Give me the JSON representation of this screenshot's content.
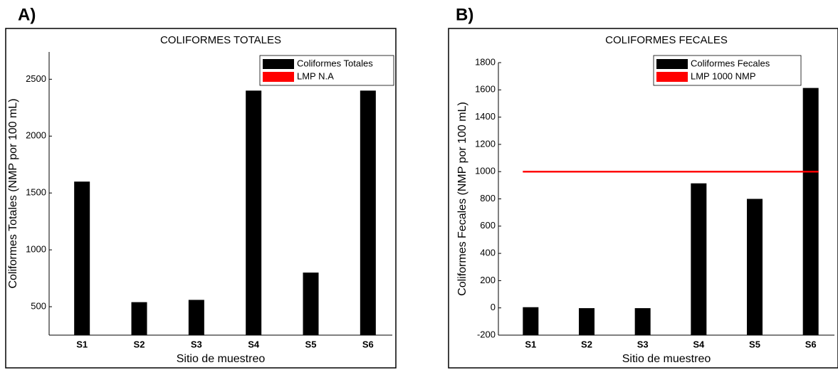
{
  "chart_data": [
    {
      "type": "bar",
      "panel_label": "A)",
      "title": "COLIFORMES TOTALES",
      "x_label": "Sitio de muestreo",
      "y_label": "Coliformes Totales (NMP por 100 mL)",
      "categories": [
        "S1",
        "S2",
        "S3",
        "S4",
        "S5",
        "S6"
      ],
      "series": [
        {
          "name": "Coliformes Totales",
          "color": "#000000",
          "values": [
            1600,
            540,
            560,
            2400,
            800,
            2400
          ]
        }
      ],
      "reference_line": {
        "name": "LMP N.A",
        "color": "#ff0000"
      },
      "ylim": [
        250,
        2740
      ],
      "yticks": [
        500,
        1000,
        1500,
        2000,
        2500
      ]
    },
    {
      "type": "bar",
      "panel_label": "B)",
      "title": "COLIFORMES FECALES",
      "x_label": "Sitio de muestreo",
      "y_label": "Coliformes Fecales (NMP por 100 mL)",
      "categories": [
        "S1",
        "S2",
        "S3",
        "S4",
        "S5",
        "S6"
      ],
      "series": [
        {
          "name": "Coliformes Fecales",
          "color": "#000000",
          "values": [
            5,
            -2,
            -2,
            914,
            800,
            1614
          ]
        }
      ],
      "reference_line": {
        "name": "LMP 1000 NMP",
        "color": "#ff0000",
        "value": 1000
      },
      "ylim": [
        -200,
        1800
      ],
      "yticks": [
        -200,
        0,
        200,
        400,
        600,
        800,
        1000,
        1200,
        1400,
        1600,
        1800
      ]
    }
  ]
}
